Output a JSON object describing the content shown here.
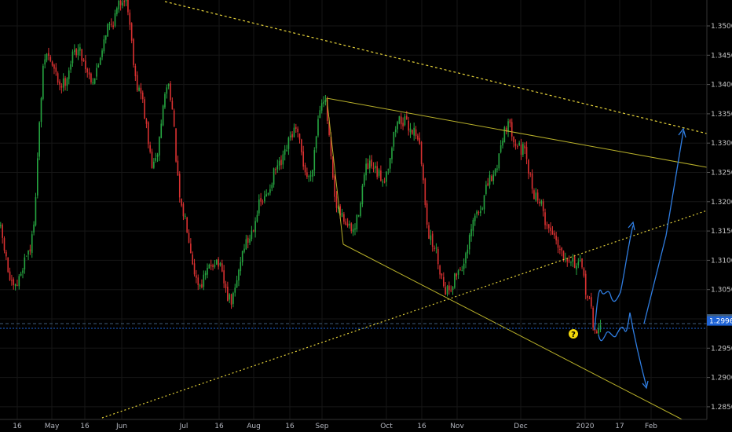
{
  "chart_data": {
    "type": "candlestick",
    "y_ticks": [
      "1.35000",
      "1.34500",
      "1.34000",
      "1.33500",
      "1.33000",
      "1.32500",
      "1.32000",
      "1.31500",
      "1.31000",
      "1.30500",
      "1.30000",
      "1.29500",
      "1.29000",
      "1.28500"
    ],
    "ylim": [
      1.2835,
      1.355
    ],
    "x_ticks": [
      "16",
      "May",
      "16",
      "Jun",
      "Jul",
      "16",
      "Aug",
      "16",
      "Sep",
      "Oct",
      "16",
      "Nov",
      "Dec",
      "2020",
      "17",
      "Feb"
    ],
    "price_tags": [
      {
        "label": "1.30000",
        "value": 1.3,
        "color": "#3f5c7a"
      },
      {
        "label": "1.29965",
        "value": 1.29965,
        "color": "#1e63d6"
      }
    ],
    "grid": true,
    "colors": {
      "up": "#26a641",
      "down": "#d93131",
      "trendline": "#b8b02a",
      "dotted": "#e6d33a",
      "projection": "#2f7de1",
      "background": "#000000"
    },
    "annotation_icon": "question-icon",
    "annotation_symbol": "?",
    "keypoints": [
      [
        "2019-04-01",
        1.308
      ],
      [
        "2019-04-08",
        1.316
      ],
      [
        "2019-04-15",
        1.305
      ],
      [
        "2019-04-22",
        1.312
      ],
      [
        "2019-04-29",
        1.345
      ],
      [
        "2019-05-06",
        1.34
      ],
      [
        "2019-05-13",
        1.346
      ],
      [
        "2019-05-20",
        1.341
      ],
      [
        "2019-05-27",
        1.35
      ],
      [
        "2019-06-03",
        1.355
      ],
      [
        "2019-06-10",
        1.339
      ],
      [
        "2019-06-17",
        1.326
      ],
      [
        "2019-06-24",
        1.34
      ],
      [
        "2019-07-01",
        1.318
      ],
      [
        "2019-07-08",
        1.306
      ],
      [
        "2019-07-15",
        1.31
      ],
      [
        "2019-07-22",
        1.303
      ],
      [
        "2019-07-29",
        1.313
      ],
      [
        "2019-08-05",
        1.32
      ],
      [
        "2019-08-12",
        1.326
      ],
      [
        "2019-08-19",
        1.332
      ],
      [
        "2019-08-26",
        1.324
      ],
      [
        "2019-09-02",
        1.338
      ],
      [
        "2019-09-09",
        1.318
      ],
      [
        "2019-09-16",
        1.315
      ],
      [
        "2019-09-23",
        1.326
      ],
      [
        "2019-09-30",
        1.324
      ],
      [
        "2019-10-07",
        1.334
      ],
      [
        "2019-10-14",
        1.332
      ],
      [
        "2019-10-21",
        1.313
      ],
      [
        "2019-10-28",
        1.305
      ],
      [
        "2019-11-04",
        1.309
      ],
      [
        "2019-11-11",
        1.318
      ],
      [
        "2019-11-18",
        1.324
      ],
      [
        "2019-11-25",
        1.333
      ],
      [
        "2019-12-02",
        1.329
      ],
      [
        "2019-12-09",
        1.321
      ],
      [
        "2019-12-16",
        1.315
      ],
      [
        "2019-12-23",
        1.311
      ],
      [
        "2019-12-30",
        1.309
      ],
      [
        "2020-01-03",
        1.304
      ],
      [
        "2020-01-06",
        1.2975
      ],
      [
        "2020-01-08",
        1.299
      ]
    ]
  }
}
